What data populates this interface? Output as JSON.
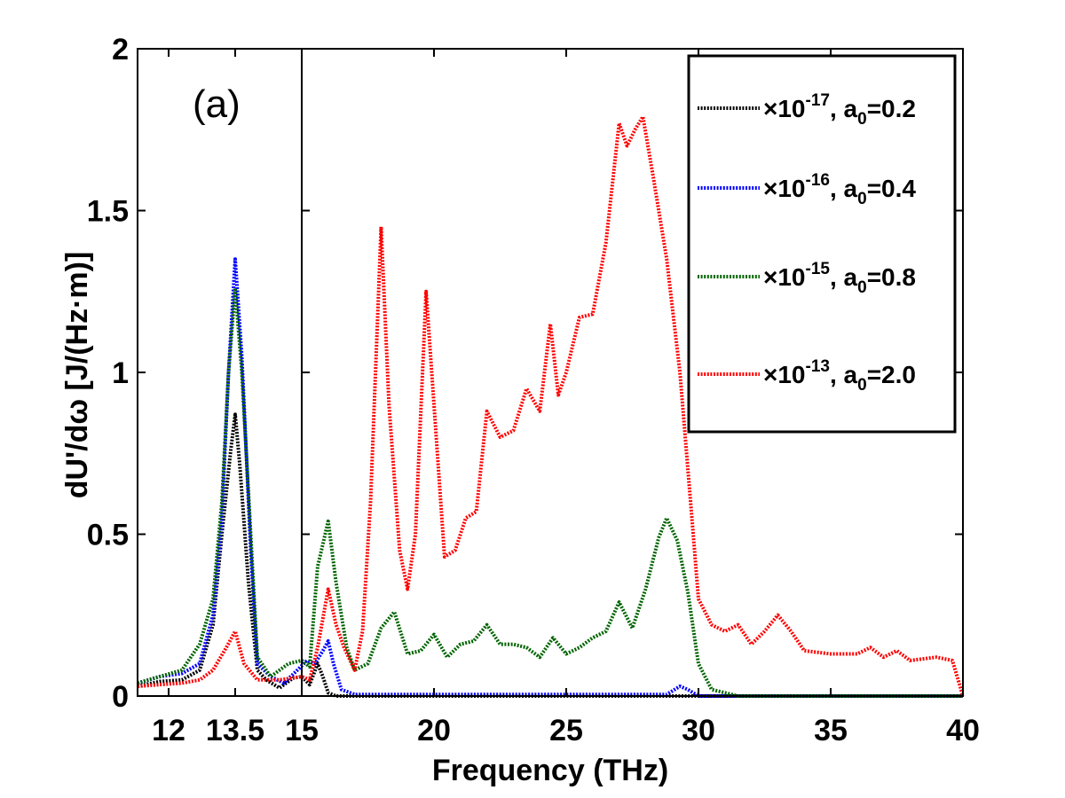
{
  "chart_data": {
    "type": "line",
    "panel_label": "(a)",
    "xlabel": "Frequency (THz)",
    "ylabel": "dU'/dω [J/(Hz·m)]",
    "xlim": [
      11.3,
      40
    ],
    "ylim": [
      0,
      2
    ],
    "x_break": 15,
    "x_ticks": [
      {
        "value": 12,
        "label": "12"
      },
      {
        "value": 13.5,
        "label": "13.5"
      },
      {
        "value": 15,
        "label": "15"
      },
      {
        "value": 20,
        "label": "20"
      },
      {
        "value": 25,
        "label": "25"
      },
      {
        "value": 30,
        "label": "30"
      },
      {
        "value": 35,
        "label": "35"
      },
      {
        "value": 40,
        "label": "40"
      }
    ],
    "y_ticks": [
      {
        "value": 0,
        "label": "0"
      },
      {
        "value": 0.5,
        "label": "0.5"
      },
      {
        "value": 1,
        "label": "1"
      },
      {
        "value": 1.5,
        "label": "1.5"
      },
      {
        "value": 2,
        "label": "2"
      }
    ],
    "legend_position": "top-right",
    "series": [
      {
        "name": "×10-17, a0=0.2",
        "legend_prefix": "×10",
        "legend_exp": "-17",
        "legend_mid": ", a",
        "legend_sub": "0",
        "legend_suffix": "=0.2",
        "color": "#000000",
        "points": [
          [
            11.3,
            0.03
          ],
          [
            11.8,
            0.045
          ],
          [
            12.3,
            0.05
          ],
          [
            12.7,
            0.08
          ],
          [
            13.0,
            0.22
          ],
          [
            13.2,
            0.5
          ],
          [
            13.4,
            0.76
          ],
          [
            13.5,
            0.87
          ],
          [
            13.6,
            0.72
          ],
          [
            13.8,
            0.35
          ],
          [
            14.0,
            0.08
          ],
          [
            14.2,
            0.05
          ],
          [
            14.5,
            0.025
          ],
          [
            14.8,
            0.055
          ],
          [
            15.0,
            0.06
          ],
          [
            15.3,
            0.035
          ],
          [
            15.6,
            0.1
          ],
          [
            15.8,
            0.06
          ],
          [
            16.0,
            0.01
          ],
          [
            16.3,
            0.0
          ],
          [
            20,
            0.0
          ],
          [
            30,
            0.0
          ],
          [
            35,
            0.0
          ],
          [
            40,
            0.0
          ]
        ]
      },
      {
        "name": "×10-16, a0=0.4",
        "legend_prefix": "×10",
        "legend_exp": "-16",
        "legend_mid": ", a",
        "legend_sub": "0",
        "legend_suffix": "=0.4",
        "color": "#0000ff",
        "points": [
          [
            11.3,
            0.04
          ],
          [
            11.8,
            0.06
          ],
          [
            12.3,
            0.07
          ],
          [
            12.7,
            0.1
          ],
          [
            13.0,
            0.25
          ],
          [
            13.2,
            0.55
          ],
          [
            13.35,
            1.0
          ],
          [
            13.5,
            1.35
          ],
          [
            13.65,
            1.05
          ],
          [
            13.85,
            0.45
          ],
          [
            14.0,
            0.1
          ],
          [
            14.3,
            0.06
          ],
          [
            14.6,
            0.04
          ],
          [
            14.9,
            0.08
          ],
          [
            15.2,
            0.11
          ],
          [
            15.5,
            0.1
          ],
          [
            15.8,
            0.14
          ],
          [
            16.0,
            0.17
          ],
          [
            16.2,
            0.1
          ],
          [
            16.5,
            0.02
          ],
          [
            17.0,
            0.005
          ],
          [
            20,
            0.005
          ],
          [
            25,
            0.005
          ],
          [
            28.8,
            0.005
          ],
          [
            29.3,
            0.03
          ],
          [
            29.6,
            0.02
          ],
          [
            30.0,
            0.0
          ],
          [
            35,
            0.0
          ],
          [
            40,
            0.0
          ]
        ]
      },
      {
        "name": "×10-15, a0=0.8",
        "legend_prefix": "×10",
        "legend_exp": "-15",
        "legend_mid": ", a",
        "legend_sub": "0",
        "legend_suffix": "=0.8",
        "color": "#006400",
        "points": [
          [
            11.3,
            0.04
          ],
          [
            11.8,
            0.06
          ],
          [
            12.3,
            0.08
          ],
          [
            12.7,
            0.16
          ],
          [
            13.0,
            0.3
          ],
          [
            13.2,
            0.6
          ],
          [
            13.35,
            1.0
          ],
          [
            13.5,
            1.26
          ],
          [
            13.65,
            1.0
          ],
          [
            13.85,
            0.5
          ],
          [
            14.0,
            0.12
          ],
          [
            14.3,
            0.06
          ],
          [
            14.7,
            0.1
          ],
          [
            15.0,
            0.11
          ],
          [
            15.3,
            0.09
          ],
          [
            15.6,
            0.4
          ],
          [
            16.0,
            0.54
          ],
          [
            16.3,
            0.35
          ],
          [
            16.7,
            0.15
          ],
          [
            17.0,
            0.08
          ],
          [
            17.5,
            0.1
          ],
          [
            18.0,
            0.21
          ],
          [
            18.5,
            0.26
          ],
          [
            19.0,
            0.13
          ],
          [
            19.5,
            0.14
          ],
          [
            20.0,
            0.19
          ],
          [
            20.5,
            0.12
          ],
          [
            21.0,
            0.16
          ],
          [
            21.5,
            0.17
          ],
          [
            22.0,
            0.22
          ],
          [
            22.5,
            0.16
          ],
          [
            23.0,
            0.16
          ],
          [
            23.5,
            0.15
          ],
          [
            24.0,
            0.12
          ],
          [
            24.5,
            0.18
          ],
          [
            25.0,
            0.13
          ],
          [
            25.5,
            0.15
          ],
          [
            26.0,
            0.18
          ],
          [
            26.5,
            0.2
          ],
          [
            27.0,
            0.29
          ],
          [
            27.5,
            0.21
          ],
          [
            28.0,
            0.33
          ],
          [
            28.5,
            0.49
          ],
          [
            28.8,
            0.55
          ],
          [
            29.2,
            0.48
          ],
          [
            29.6,
            0.32
          ],
          [
            30.0,
            0.1
          ],
          [
            30.5,
            0.02
          ],
          [
            31.5,
            0.0
          ],
          [
            35,
            0.0
          ],
          [
            40,
            0.0
          ]
        ]
      },
      {
        "name": "×10-13, a0=2.0",
        "legend_prefix": "×10",
        "legend_exp": "-13",
        "legend_mid": ", a",
        "legend_sub": "0",
        "legend_suffix": "=2.0",
        "color": "#ff0000",
        "points": [
          [
            11.3,
            0.03
          ],
          [
            11.8,
            0.035
          ],
          [
            12.3,
            0.04
          ],
          [
            12.7,
            0.05
          ],
          [
            13.0,
            0.08
          ],
          [
            13.3,
            0.15
          ],
          [
            13.5,
            0.2
          ],
          [
            13.7,
            0.1
          ],
          [
            14.0,
            0.05
          ],
          [
            14.5,
            0.05
          ],
          [
            15.0,
            0.06
          ],
          [
            15.3,
            0.05
          ],
          [
            15.6,
            0.15
          ],
          [
            16.0,
            0.33
          ],
          [
            16.3,
            0.22
          ],
          [
            16.6,
            0.15
          ],
          [
            17.0,
            0.08
          ],
          [
            17.3,
            0.2
          ],
          [
            17.6,
            0.6
          ],
          [
            18.0,
            1.45
          ],
          [
            18.3,
            0.9
          ],
          [
            18.7,
            0.45
          ],
          [
            19.0,
            0.33
          ],
          [
            19.3,
            0.5
          ],
          [
            19.7,
            1.25
          ],
          [
            20.0,
            0.9
          ],
          [
            20.4,
            0.43
          ],
          [
            20.8,
            0.45
          ],
          [
            21.2,
            0.55
          ],
          [
            21.6,
            0.57
          ],
          [
            22.0,
            0.88
          ],
          [
            22.5,
            0.8
          ],
          [
            23.0,
            0.82
          ],
          [
            23.5,
            0.95
          ],
          [
            24.0,
            0.88
          ],
          [
            24.4,
            1.15
          ],
          [
            24.7,
            0.93
          ],
          [
            25.0,
            1.0
          ],
          [
            25.5,
            1.17
          ],
          [
            26.0,
            1.18
          ],
          [
            26.5,
            1.4
          ],
          [
            27.0,
            1.77
          ],
          [
            27.3,
            1.7
          ],
          [
            27.6,
            1.75
          ],
          [
            27.9,
            1.79
          ],
          [
            28.3,
            1.6
          ],
          [
            28.8,
            1.35
          ],
          [
            29.3,
            1.0
          ],
          [
            29.7,
            0.6
          ],
          [
            30.0,
            0.3
          ],
          [
            30.5,
            0.22
          ],
          [
            31.0,
            0.2
          ],
          [
            31.5,
            0.22
          ],
          [
            32.0,
            0.16
          ],
          [
            32.5,
            0.2
          ],
          [
            33.0,
            0.25
          ],
          [
            33.5,
            0.2
          ],
          [
            34.0,
            0.14
          ],
          [
            35.0,
            0.13
          ],
          [
            36.0,
            0.13
          ],
          [
            36.5,
            0.15
          ],
          [
            37.0,
            0.12
          ],
          [
            37.5,
            0.14
          ],
          [
            38.0,
            0.11
          ],
          [
            39.0,
            0.12
          ],
          [
            39.6,
            0.11
          ],
          [
            40.0,
            0.0
          ]
        ]
      }
    ]
  }
}
